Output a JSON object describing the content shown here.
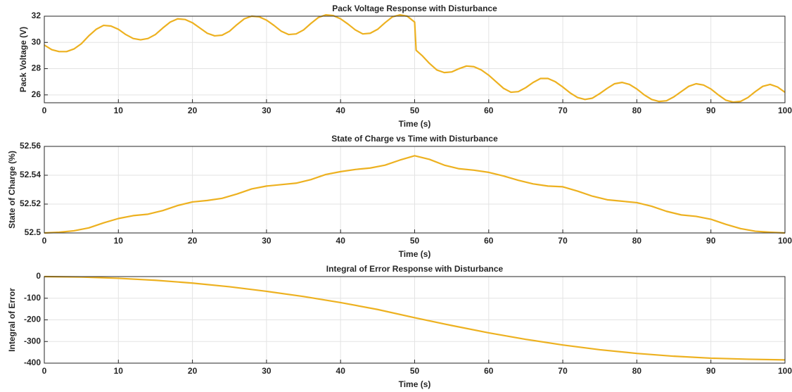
{
  "chart_data": [
    {
      "type": "line",
      "title": "Pack Voltage Response with Disturbance",
      "xlabel": "Time (s)",
      "ylabel": "Pack Voltage (V)",
      "color": "#EDB120",
      "grid": true,
      "xlim": [
        0,
        100
      ],
      "xticks": [
        0,
        10,
        20,
        30,
        40,
        50,
        60,
        70,
        80,
        90,
        100
      ],
      "ylim": [
        25.4,
        32
      ],
      "yticks": [
        26,
        28,
        30,
        32
      ],
      "x": [
        0,
        1,
        2,
        3,
        4,
        5,
        6,
        7,
        8,
        9,
        10,
        11,
        12,
        13,
        14,
        15,
        16,
        17,
        18,
        19,
        20,
        21,
        22,
        23,
        24,
        25,
        26,
        27,
        28,
        29,
        30,
        31,
        32,
        33,
        34,
        35,
        36,
        37,
        38,
        39,
        40,
        41,
        42,
        43,
        44,
        45,
        46,
        47,
        48,
        49,
        50,
        50.2,
        51,
        52,
        53,
        54,
        55,
        56,
        57,
        58,
        59,
        60,
        61,
        62,
        63,
        64,
        65,
        66,
        67,
        68,
        69,
        70,
        71,
        72,
        73,
        74,
        75,
        76,
        77,
        78,
        79,
        80,
        81,
        82,
        83,
        84,
        85,
        86,
        87,
        88,
        89,
        90,
        91,
        92,
        93,
        94,
        95,
        96,
        97,
        98,
        99,
        100
      ],
      "values": [
        29.8,
        29.45,
        29.3,
        29.3,
        29.5,
        29.9,
        30.5,
        31.0,
        31.3,
        31.25,
        31.0,
        30.6,
        30.3,
        30.2,
        30.3,
        30.6,
        31.1,
        31.55,
        31.8,
        31.75,
        31.5,
        31.1,
        30.7,
        30.5,
        30.55,
        30.85,
        31.35,
        31.8,
        32.0,
        31.95,
        31.7,
        31.3,
        30.85,
        30.6,
        30.65,
        30.95,
        31.45,
        31.9,
        32.1,
        32.05,
        31.8,
        31.4,
        30.95,
        30.65,
        30.7,
        31.0,
        31.5,
        31.95,
        32.1,
        32.0,
        31.55,
        29.4,
        29.0,
        28.4,
        27.9,
        27.7,
        27.75,
        28.0,
        28.2,
        28.15,
        27.9,
        27.5,
        27.0,
        26.5,
        26.2,
        26.25,
        26.55,
        26.95,
        27.25,
        27.25,
        27.0,
        26.6,
        26.15,
        25.8,
        25.65,
        25.75,
        26.1,
        26.5,
        26.85,
        26.95,
        26.8,
        26.45,
        26.0,
        25.65,
        25.5,
        25.55,
        25.85,
        26.25,
        26.65,
        26.85,
        26.75,
        26.45,
        26.0,
        25.6,
        25.45,
        25.5,
        25.8,
        26.25,
        26.65,
        26.8,
        26.6,
        26.2
      ]
    },
    {
      "type": "line",
      "title": "State of Charge vs Time with Disturbance",
      "xlabel": "Time (s)",
      "ylabel": "State of Charge (%)",
      "color": "#EDB120",
      "grid": true,
      "xlim": [
        0,
        100
      ],
      "xticks": [
        0,
        10,
        20,
        30,
        40,
        50,
        60,
        70,
        80,
        90,
        100
      ],
      "ylim": [
        52.5,
        52.56
      ],
      "yticks": [
        52.5,
        52.52,
        52.54,
        52.56
      ],
      "x": [
        0,
        2,
        4,
        6,
        8,
        10,
        12,
        14,
        16,
        18,
        20,
        22,
        24,
        26,
        28,
        30,
        32,
        34,
        36,
        38,
        40,
        42,
        44,
        46,
        48,
        50,
        52,
        54,
        56,
        58,
        60,
        62,
        64,
        66,
        68,
        70,
        72,
        74,
        76,
        78,
        80,
        82,
        84,
        86,
        88,
        90,
        92,
        94,
        96,
        98,
        100
      ],
      "values": [
        52.5,
        52.5005,
        52.5015,
        52.5035,
        52.507,
        52.51,
        52.512,
        52.513,
        52.5155,
        52.519,
        52.5215,
        52.5225,
        52.524,
        52.527,
        52.5305,
        52.5325,
        52.5335,
        52.5345,
        52.537,
        52.5405,
        52.5425,
        52.544,
        52.545,
        52.547,
        52.5505,
        52.5535,
        52.551,
        52.547,
        52.5445,
        52.5435,
        52.542,
        52.5395,
        52.5365,
        52.534,
        52.5325,
        52.532,
        52.529,
        52.5255,
        52.523,
        52.522,
        52.521,
        52.5185,
        52.515,
        52.5125,
        52.5115,
        52.5095,
        52.506,
        52.503,
        52.5012,
        52.5005,
        52.5
      ]
    },
    {
      "type": "line",
      "title": "Integral of Error Response with Disturbance",
      "xlabel": "Time (s)",
      "ylabel": "Integral of Error",
      "color": "#EDB120",
      "grid": true,
      "xlim": [
        0,
        100
      ],
      "xticks": [
        0,
        10,
        20,
        30,
        40,
        50,
        60,
        70,
        80,
        90,
        100
      ],
      "ylim": [
        -400,
        0
      ],
      "yticks": [
        -400,
        -300,
        -200,
        -100,
        0
      ],
      "x": [
        0,
        5,
        10,
        15,
        20,
        25,
        30,
        35,
        40,
        45,
        50,
        55,
        60,
        65,
        70,
        75,
        80,
        85,
        90,
        95,
        100
      ],
      "values": [
        0,
        -2,
        -8,
        -17,
        -30,
        -47,
        -68,
        -92,
        -120,
        -152,
        -190,
        -226,
        -260,
        -290,
        -316,
        -338,
        -355,
        -368,
        -377,
        -382,
        -385
      ]
    }
  ]
}
